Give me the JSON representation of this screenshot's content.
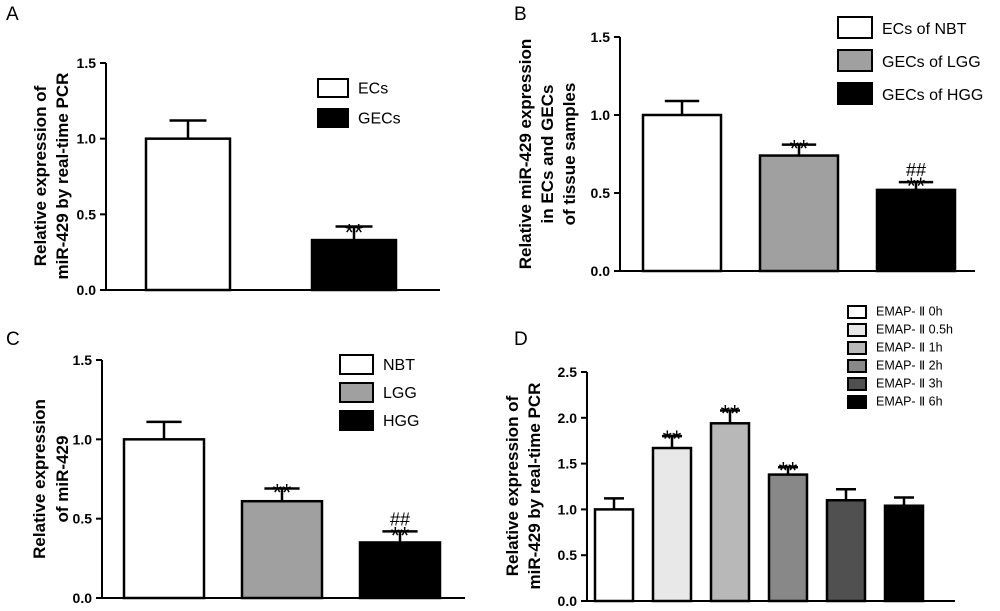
{
  "chart_data": [
    {
      "panel": "A",
      "type": "bar",
      "categories": [
        "ECs",
        "GECs"
      ],
      "values": [
        1.0,
        0.33
      ],
      "errors": [
        0.12,
        0.09
      ],
      "colors": [
        "#ffffff",
        "#000000"
      ],
      "annotations": [
        "",
        "**"
      ],
      "legend": [
        "ECs",
        "GECs"
      ],
      "ylabel": [
        "Relative expression of",
        "miR-429 by real-time PCR"
      ],
      "ylim": [
        0,
        1.5
      ],
      "yticks": [
        "0.0",
        "0.5",
        "1.0",
        "1.5"
      ]
    },
    {
      "panel": "B",
      "type": "bar",
      "categories": [
        "ECs of NBT",
        "GECs of LGG",
        "GECs of HGG"
      ],
      "values": [
        1.0,
        0.74,
        0.52
      ],
      "errors": [
        0.09,
        0.07,
        0.05
      ],
      "colors": [
        "#ffffff",
        "#a0a0a0",
        "#000000"
      ],
      "annotations": [
        "",
        "**",
        "**"
      ],
      "annotations2": [
        "",
        "",
        "##"
      ],
      "legend": [
        "ECs of NBT",
        "GECs of LGG",
        "GECs of HGG"
      ],
      "ylabel": [
        "Relative miR-429 expression",
        "in ECs and GECs",
        "of tissue samples"
      ],
      "ylim": [
        0,
        1.5
      ],
      "yticks": [
        "0.0",
        "0.5",
        "1.0",
        "1.5"
      ]
    },
    {
      "panel": "C",
      "type": "bar",
      "categories": [
        "NBT",
        "LGG",
        "HGG"
      ],
      "values": [
        1.0,
        0.61,
        0.35
      ],
      "errors": [
        0.11,
        0.08,
        0.07
      ],
      "colors": [
        "#ffffff",
        "#a0a0a0",
        "#000000"
      ],
      "annotations": [
        "",
        "**",
        "**"
      ],
      "annotations2": [
        "",
        "",
        "##"
      ],
      "legend": [
        "NBT",
        "LGG",
        "HGG"
      ],
      "ylabel": [
        "Relative expression",
        "of miR-429"
      ],
      "ylim": [
        0,
        1.5
      ],
      "yticks": [
        "0.0",
        "0.5",
        "1.0",
        "1.5"
      ]
    },
    {
      "panel": "D",
      "type": "bar",
      "categories": [
        "EMAP- Ⅱ 0h",
        "EMAP- Ⅱ 0.5h",
        "EMAP- Ⅱ 1h",
        "EMAP- Ⅱ 2h",
        "EMAP- Ⅱ 3h",
        "EMAP- Ⅱ 6h"
      ],
      "values": [
        1.0,
        1.67,
        1.94,
        1.38,
        1.1,
        1.04
      ],
      "errors": [
        0.12,
        0.13,
        0.14,
        0.08,
        0.12,
        0.09
      ],
      "colors": [
        "#ffffff",
        "#e8e8e8",
        "#b8b8b8",
        "#888888",
        "#505050",
        "#000000"
      ],
      "annotations": [
        "",
        "**",
        "**",
        "**",
        "",
        ""
      ],
      "legend": [
        "EMAP- Ⅱ 0h",
        "EMAP- Ⅱ 0.5h",
        "EMAP- Ⅱ 1h",
        "EMAP- Ⅱ 2h",
        "EMAP- Ⅱ 3h",
        "EMAP- Ⅱ 6h"
      ],
      "ylabel": [
        "Relative expression of",
        "miR-429 by real-time PCR"
      ],
      "ylim": [
        0,
        2.5
      ],
      "yticks": [
        "0.0",
        "0.5",
        "1.0",
        "1.5",
        "2.0",
        "2.5"
      ]
    }
  ]
}
